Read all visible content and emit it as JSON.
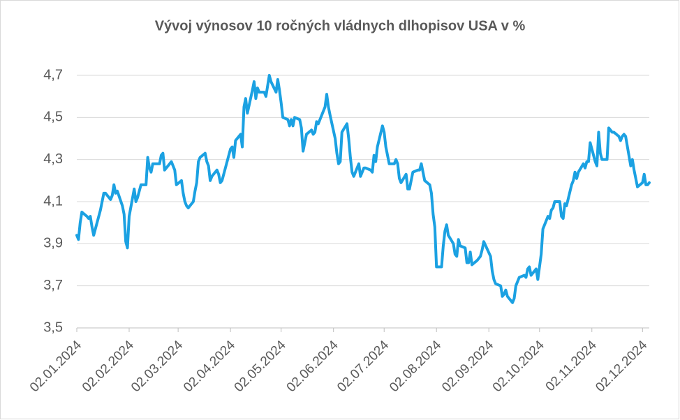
{
  "chart_data": {
    "type": "line",
    "title": "Vývoj výnosov 10 ročných vládnych dlhopisov USA v %",
    "color": "#1ba1e2",
    "grid": true,
    "ylim": [
      3.5,
      4.7
    ],
    "yticks": [
      {
        "value": 3.5,
        "label": "3,5"
      },
      {
        "value": 3.7,
        "label": "3,7"
      },
      {
        "value": 3.9,
        "label": "3,9"
      },
      {
        "value": 4.1,
        "label": "4,1"
      },
      {
        "value": 4.3,
        "label": "4,3"
      },
      {
        "value": 4.5,
        "label": "4,5"
      },
      {
        "value": 4.7,
        "label": "4,7"
      }
    ],
    "xlim": [
      "02.01.2024",
      "06.12.2024"
    ],
    "xticks": [
      "02.01.2024",
      "02.02.2024",
      "02.03.2024",
      "02.04.2024",
      "02.05.2024",
      "02.06.2024",
      "02.07.2024",
      "02.08.2024",
      "02.09.2024",
      "02.10.2024",
      "02.11.2024",
      "02.12.2024"
    ],
    "x": [
      "02.01.2024",
      "03.01.2024",
      "04.01.2024",
      "05.01.2024",
      "08.01.2024",
      "09.01.2024",
      "10.01.2024",
      "11.01.2024",
      "12.01.2024",
      "16.01.2024",
      "17.01.2024",
      "18.01.2024",
      "19.01.2024",
      "22.01.2024",
      "23.01.2024",
      "24.01.2024",
      "25.01.2024",
      "26.01.2024",
      "29.01.2024",
      "30.01.2024",
      "31.01.2024",
      "01.02.2024",
      "02.02.2024",
      "05.02.2024",
      "06.02.2024",
      "07.02.2024",
      "08.02.2024",
      "09.02.2024",
      "12.02.2024",
      "13.02.2024",
      "14.02.2024",
      "15.02.2024",
      "16.02.2024",
      "20.02.2024",
      "21.02.2024",
      "22.02.2024",
      "23.02.2024",
      "26.02.2024",
      "27.02.2024",
      "28.02.2024",
      "29.02.2024",
      "01.03.2024",
      "04.03.2024",
      "05.03.2024",
      "06.03.2024",
      "07.03.2024",
      "08.03.2024",
      "11.03.2024",
      "12.03.2024",
      "13.03.2024",
      "14.03.2024",
      "15.03.2024",
      "18.03.2024",
      "19.03.2024",
      "20.03.2024",
      "21.03.2024",
      "22.03.2024",
      "25.03.2024",
      "26.03.2024",
      "27.03.2024",
      "28.03.2024",
      "01.04.2024",
      "02.04.2024",
      "03.04.2024",
      "04.04.2024",
      "05.04.2024",
      "08.04.2024",
      "09.04.2024",
      "10.04.2024",
      "11.04.2024",
      "12.04.2024",
      "15.04.2024",
      "16.04.2024",
      "17.04.2024",
      "18.04.2024",
      "19.04.2024",
      "22.04.2024",
      "23.04.2024",
      "24.04.2024",
      "25.04.2024",
      "26.04.2024",
      "29.04.2024",
      "30.04.2024",
      "01.05.2024",
      "02.05.2024",
      "03.05.2024",
      "06.05.2024",
      "07.05.2024",
      "08.05.2024",
      "09.05.2024",
      "10.05.2024",
      "13.05.2024",
      "14.05.2024",
      "15.05.2024",
      "16.05.2024",
      "17.05.2024",
      "20.05.2024",
      "21.05.2024",
      "22.05.2024",
      "23.05.2024",
      "24.05.2024",
      "28.05.2024",
      "29.05.2024",
      "30.05.2024",
      "31.05.2024",
      "03.06.2024",
      "04.06.2024",
      "05.06.2024",
      "06.06.2024",
      "07.06.2024",
      "10.06.2024",
      "11.06.2024",
      "12.06.2024",
      "13.06.2024",
      "14.06.2024",
      "17.06.2024",
      "18.06.2024",
      "20.06.2024",
      "21.06.2024",
      "24.06.2024",
      "25.06.2024",
      "26.06.2024",
      "27.06.2024",
      "28.06.2024",
      "01.07.2024",
      "02.07.2024",
      "03.07.2024",
      "05.07.2024",
      "08.07.2024",
      "09.07.2024",
      "10.07.2024",
      "11.07.2024",
      "12.07.2024",
      "15.07.2024",
      "16.07.2024",
      "17.07.2024",
      "18.07.2024",
      "19.07.2024",
      "22.07.2024",
      "23.07.2024",
      "24.07.2024",
      "25.07.2024",
      "26.07.2024",
      "29.07.2024",
      "30.07.2024",
      "31.07.2024",
      "01.08.2024",
      "02.08.2024",
      "05.08.2024",
      "06.08.2024",
      "07.08.2024",
      "08.08.2024",
      "09.08.2024",
      "12.08.2024",
      "13.08.2024",
      "14.08.2024",
      "15.08.2024",
      "16.08.2024",
      "19.08.2024",
      "20.08.2024",
      "21.08.2024",
      "22.08.2024",
      "23.08.2024",
      "26.08.2024",
      "27.08.2024",
      "28.08.2024",
      "29.08.2024",
      "30.08.2024",
      "03.09.2024",
      "04.09.2024",
      "05.09.2024",
      "06.09.2024",
      "09.09.2024",
      "10.09.2024",
      "11.09.2024",
      "12.09.2024",
      "13.09.2024",
      "16.09.2024",
      "17.09.2024",
      "18.09.2024",
      "19.09.2024",
      "20.09.2024",
      "23.09.2024",
      "24.09.2024",
      "25.09.2024",
      "26.09.2024",
      "27.09.2024",
      "30.09.2024",
      "01.10.2024",
      "02.10.2024",
      "03.10.2024",
      "04.10.2024",
      "07.10.2024",
      "08.10.2024",
      "09.10.2024",
      "10.10.2024",
      "11.10.2024",
      "14.10.2024",
      "15.10.2024",
      "16.10.2024",
      "17.10.2024",
      "18.10.2024",
      "21.10.2024",
      "22.10.2024",
      "23.10.2024",
      "24.10.2024",
      "25.10.2024",
      "28.10.2024",
      "29.10.2024",
      "30.10.2024",
      "31.10.2024",
      "01.11.2024",
      "04.11.2024",
      "05.11.2024",
      "06.11.2024",
      "07.11.2024",
      "08.11.2024",
      "11.11.2024",
      "12.11.2024",
      "13.11.2024",
      "14.11.2024",
      "15.11.2024",
      "18.11.2024",
      "19.11.2024",
      "20.11.2024",
      "21.11.2024",
      "22.11.2024",
      "25.11.2024",
      "26.11.2024",
      "27.11.2024",
      "29.11.2024",
      "02.12.2024",
      "03.12.2024",
      "04.12.2024",
      "05.12.2024",
      "06.12.2024"
    ],
    "values": [
      3.94,
      3.92,
      4.0,
      4.05,
      4.03,
      4.02,
      4.03,
      3.98,
      3.94,
      4.06,
      4.1,
      4.14,
      4.14,
      4.11,
      4.13,
      4.18,
      4.14,
      4.15,
      4.08,
      4.04,
      3.91,
      3.88,
      4.03,
      4.16,
      4.1,
      4.12,
      4.15,
      4.18,
      4.18,
      4.31,
      4.26,
      4.24,
      4.28,
      4.28,
      4.32,
      4.33,
      4.25,
      4.28,
      4.29,
      4.27,
      4.25,
      4.18,
      4.2,
      4.14,
      4.1,
      4.08,
      4.07,
      4.1,
      4.15,
      4.19,
      4.29,
      4.31,
      4.33,
      4.29,
      4.27,
      4.2,
      4.22,
      4.25,
      4.23,
      4.19,
      4.2,
      4.32,
      4.35,
      4.36,
      4.31,
      4.39,
      4.42,
      4.36,
      4.55,
      4.59,
      4.52,
      4.63,
      4.67,
      4.59,
      4.64,
      4.62,
      4.62,
      4.6,
      4.65,
      4.7,
      4.67,
      4.62,
      4.68,
      4.63,
      4.57,
      4.5,
      4.49,
      4.46,
      4.49,
      4.46,
      4.5,
      4.49,
      4.45,
      4.34,
      4.38,
      4.42,
      4.44,
      4.42,
      4.43,
      4.48,
      4.47,
      4.55,
      4.61,
      4.55,
      4.51,
      4.4,
      4.33,
      4.28,
      4.29,
      4.43,
      4.47,
      4.4,
      4.31,
      4.24,
      4.22,
      4.28,
      4.22,
      4.26,
      4.26,
      4.25,
      4.24,
      4.32,
      4.29,
      4.36,
      4.46,
      4.43,
      4.36,
      4.28,
      4.28,
      4.3,
      4.28,
      4.21,
      4.19,
      4.23,
      4.16,
      4.16,
      4.2,
      4.24,
      4.25,
      4.25,
      4.28,
      4.24,
      4.2,
      4.18,
      4.14,
      4.04,
      3.98,
      3.79,
      3.79,
      3.89,
      3.96,
      3.99,
      3.94,
      3.9,
      3.85,
      3.84,
      3.92,
      3.89,
      3.88,
      3.81,
      3.81,
      3.86,
      3.8,
      3.82,
      3.83,
      3.84,
      3.87,
      3.91,
      3.84,
      3.77,
      3.73,
      3.71,
      3.7,
      3.65,
      3.66,
      3.68,
      3.65,
      3.62,
      3.64,
      3.7,
      3.72,
      3.74,
      3.75,
      3.74,
      3.78,
      3.79,
      3.75,
      3.78,
      3.73,
      3.79,
      3.85,
      3.97,
      4.03,
      4.02,
      4.06,
      4.07,
      4.1,
      4.1,
      4.03,
      4.02,
      4.09,
      4.08,
      4.18,
      4.2,
      4.24,
      4.21,
      4.24,
      4.28,
      4.26,
      4.29,
      4.29,
      4.38,
      4.29,
      4.27,
      4.43,
      4.33,
      4.3,
      4.3,
      4.45,
      4.44,
      4.43,
      4.43,
      4.41,
      4.39,
      4.41,
      4.42,
      4.41,
      4.27,
      4.3,
      4.25,
      4.17,
      4.19,
      4.23,
      4.18,
      4.18,
      4.19
    ]
  }
}
